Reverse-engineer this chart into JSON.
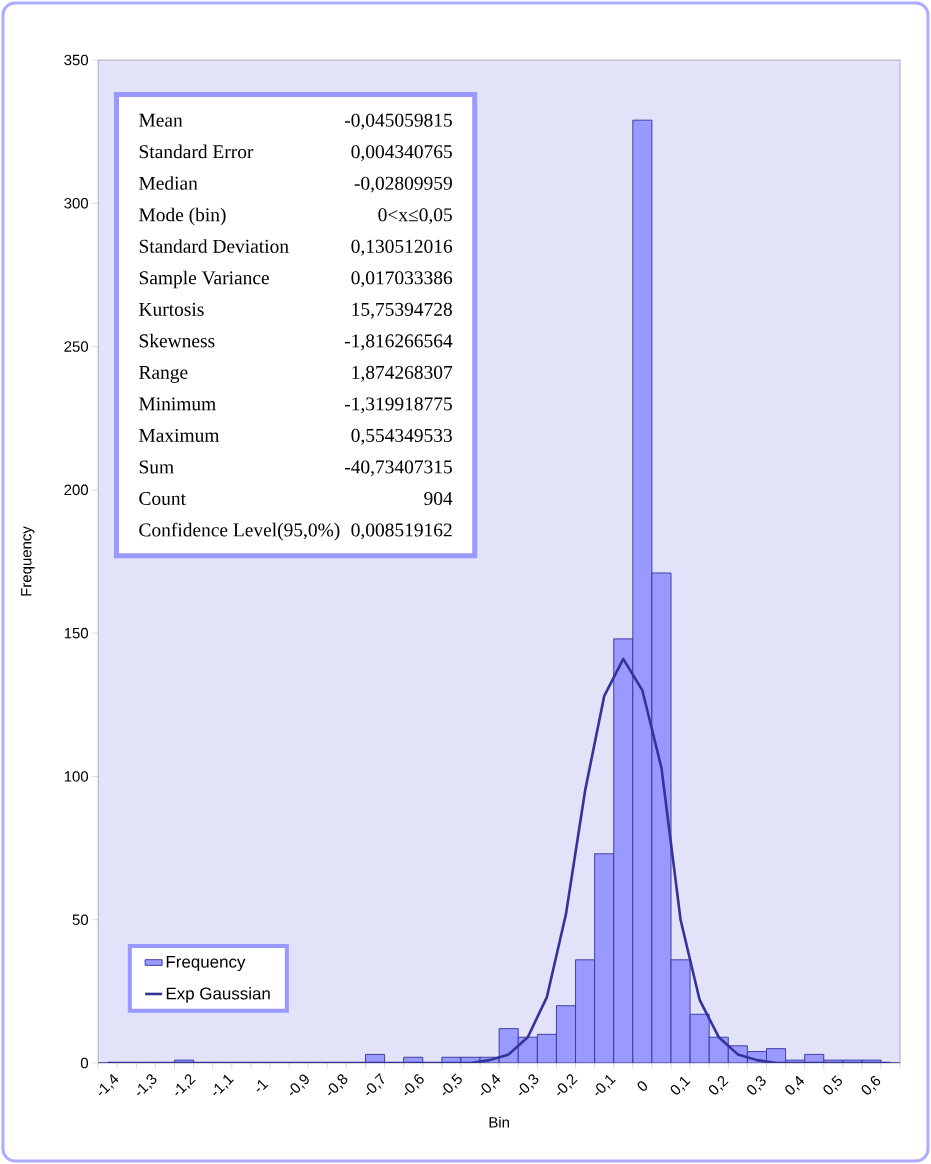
{
  "chart_data": {
    "type": "bar",
    "xlabel": "Bin",
    "ylabel": "Frequency",
    "categories": [
      "-1,4",
      null,
      "-1,3",
      null,
      "-1,2",
      null,
      "-1,1",
      null,
      "-1",
      null,
      "-0,9",
      null,
      "-0,8",
      null,
      "-0,7",
      null,
      "-0,6",
      null,
      "-0,5",
      null,
      "-0,4",
      null,
      "-0,3",
      null,
      "-0,2",
      null,
      "-0,1",
      null,
      "0",
      null,
      "0,1",
      null,
      "0,2",
      null,
      "0,3",
      null,
      "0,4",
      null,
      "0,5",
      null,
      "0,6",
      null
    ],
    "series": [
      {
        "name": "Frequency",
        "color": "#9999ff",
        "values": [
          0,
          0,
          0,
          0,
          1,
          0,
          0,
          0,
          0,
          0,
          0,
          0,
          0,
          0,
          3,
          0,
          2,
          0,
          2,
          2,
          2,
          12,
          9,
          10,
          20,
          36,
          73,
          148,
          329,
          171,
          36,
          17,
          9,
          6,
          4,
          5,
          1,
          3,
          1,
          1,
          1,
          0
        ]
      },
      {
        "name": "Exp Gaussian",
        "type": "line",
        "color": "#333399",
        "values": [
          0,
          0,
          0,
          0,
          0,
          0,
          0,
          0,
          0,
          0,
          0,
          0,
          0,
          0,
          0,
          0,
          0,
          0,
          0,
          0,
          1,
          3,
          9,
          23,
          52,
          95,
          128,
          141,
          130,
          103,
          50,
          22,
          9,
          3,
          1,
          0,
          0,
          0,
          0,
          0,
          0,
          0
        ]
      }
    ],
    "ylim": [
      0,
      350
    ],
    "yticks": [
      0,
      50,
      100,
      150,
      200,
      250,
      300,
      350
    ],
    "legend": "bottom left",
    "marker": "none",
    "annotations": [
      "Mean",
      "-0,045059815",
      "Standard Error",
      "0,004340765",
      "Median",
      "-0,02809959",
      "Mode (bin)",
      "0<x≤0,05",
      "Standard Deviation",
      "0,130512016",
      "Sample Variance",
      "0,017033386",
      "Kurtosis",
      "15,75394728",
      "Skewness",
      "-1,816266564",
      "Range",
      "1,874268307",
      "Minimum",
      "-1,319918775",
      "Maximum",
      "0,554349533",
      "Sum",
      "-40,73407315",
      "Count",
      "904",
      "Confidence Level(95,0%)",
      "0,008519162"
    ]
  }
}
